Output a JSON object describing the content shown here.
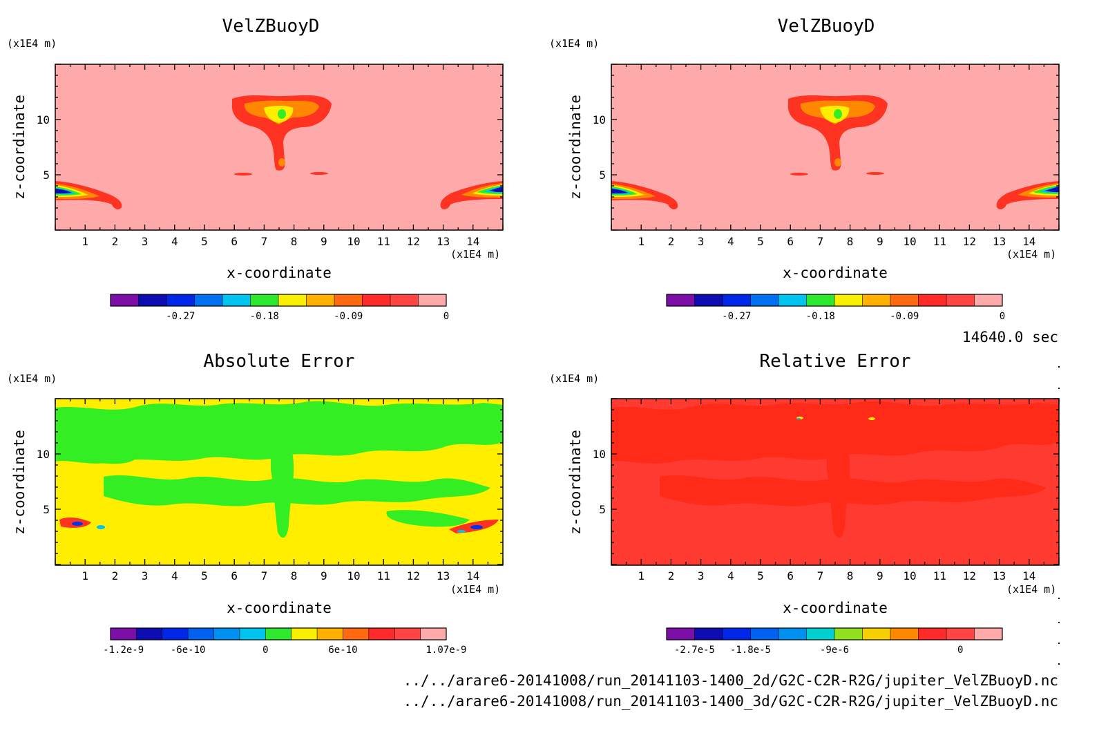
{
  "time_label": "14640.0 sec",
  "files": [
    "../../arare6-20141008/run_20141103-1400_2d/G2C-C2R-R2G/jupiter_VelZBuoyD.nc",
    "../../arare6-20141008/run_20141103-1400_3d/G2C-C2R-R2G/jupiter_VelZBuoyD.nc"
  ],
  "colors": {
    "fill_white": "#ffffff",
    "pink": "#ffaaaa",
    "red": "#ff3322",
    "orange": "#ff8800",
    "yellow": "#ffee00",
    "green": "#33ee22",
    "blue": "#0033ee"
  },
  "chart_data": [
    {
      "type": "heatmap",
      "title": "VelZBuoyD",
      "xlabel": "x-coordinate",
      "ylabel": "z-coordinate",
      "x_unit": "(x1E4 m)",
      "y_unit": "(x1E4 m)",
      "xlim": [
        0,
        15
      ],
      "ylim": [
        0,
        15
      ],
      "x_ticks": [
        "1",
        "2",
        "3",
        "4",
        "5",
        "6",
        "7",
        "8",
        "9",
        "10",
        "11",
        "12",
        "13",
        "14"
      ],
      "y_ticks": [
        "5",
        "10"
      ],
      "colorbar": {
        "colors": [
          "#7b0fa8",
          "#0c0cb0",
          "#0026e8",
          "#0070f0",
          "#00c4f0",
          "#2ee82e",
          "#f8f000",
          "#ffb000",
          "#ff6a10",
          "#ff2a2a",
          "#ff4444",
          "#ffaaaa"
        ],
        "labels": [
          "-0.27",
          "-0.18",
          "-0.09",
          "0"
        ]
      }
    },
    {
      "type": "heatmap",
      "title": "VelZBuoyD",
      "xlabel": "x-coordinate",
      "ylabel": "z-coordinate",
      "x_unit": "(x1E4 m)",
      "y_unit": "(x1E4 m)",
      "xlim": [
        0,
        15
      ],
      "ylim": [
        0,
        15
      ],
      "x_ticks": [
        "1",
        "2",
        "3",
        "4",
        "5",
        "6",
        "7",
        "8",
        "9",
        "10",
        "11",
        "12",
        "13",
        "14"
      ],
      "y_ticks": [
        "5",
        "10"
      ],
      "colorbar": {
        "colors": [
          "#7b0fa8",
          "#0c0cb0",
          "#0026e8",
          "#0070f0",
          "#00c4f0",
          "#2ee82e",
          "#f8f000",
          "#ffb000",
          "#ff6a10",
          "#ff2a2a",
          "#ff4444",
          "#ffaaaa"
        ],
        "labels": [
          "-0.27",
          "-0.18",
          "-0.09",
          "0"
        ]
      }
    },
    {
      "type": "heatmap",
      "title": "Absolute Error",
      "xlabel": "x-coordinate",
      "ylabel": "z-coordinate",
      "x_unit": "(x1E4 m)",
      "y_unit": "(x1E4 m)",
      "xlim": [
        0,
        15
      ],
      "ylim": [
        0,
        15
      ],
      "x_ticks": [
        "1",
        "2",
        "3",
        "4",
        "5",
        "6",
        "7",
        "8",
        "9",
        "10",
        "11",
        "12",
        "13",
        "14"
      ],
      "y_ticks": [
        "5",
        "10"
      ],
      "colorbar": {
        "colors": [
          "#7b0fa8",
          "#0c0cb0",
          "#0026e8",
          "#0060f0",
          "#0090f0",
          "#00c4f0",
          "#2ee82e",
          "#f8f000",
          "#ffb000",
          "#ff6a10",
          "#ff2a2a",
          "#ff4444",
          "#ffaaaa"
        ],
        "labels": [
          "-1.2e-9",
          "-6e-10",
          "0",
          "6e-10",
          "1.07e-9"
        ]
      }
    },
    {
      "type": "heatmap",
      "title": "Relative Error",
      "xlabel": "x-coordinate",
      "ylabel": "z-coordinate",
      "x_unit": "(x1E4 m)",
      "y_unit": "(x1E4 m)",
      "xlim": [
        0,
        15
      ],
      "ylim": [
        0,
        15
      ],
      "x_ticks": [
        "1",
        "2",
        "3",
        "4",
        "5",
        "6",
        "7",
        "8",
        "9",
        "10",
        "11",
        "12",
        "13",
        "14"
      ],
      "y_ticks": [
        "5",
        "10"
      ],
      "colorbar": {
        "colors": [
          "#7b0fa8",
          "#0c0cb0",
          "#0026e8",
          "#0060f0",
          "#0090f0",
          "#00d0d0",
          "#90e020",
          "#f8d000",
          "#ff8800",
          "#ff2a2a",
          "#ff4444",
          "#ffaaaa"
        ],
        "labels": [
          "-2.7e-5",
          "-1.8e-5",
          "-9e-6",
          "0"
        ]
      }
    }
  ]
}
